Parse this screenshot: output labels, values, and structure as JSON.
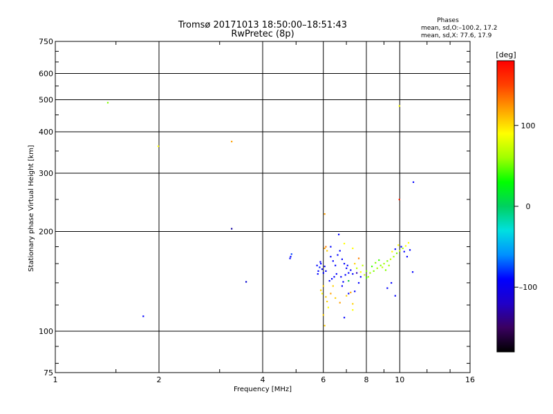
{
  "title": "Tromsø 20171013 18:50:00–18:51:43",
  "subtitle": "RwPretec (8p)",
  "phases": {
    "heading": "Phases",
    "o_line": "mean, sd,O:–100.2, 17.2",
    "x_line": "mean, sd,X:  77.6, 17.9"
  },
  "colorbar": {
    "label": "[deg]",
    "ticks": [
      {
        "value": 100,
        "label": "100"
      },
      {
        "value": 0,
        "label": "0"
      },
      {
        "value": -100,
        "label": "–100"
      }
    ],
    "range": [
      -180,
      180
    ],
    "colors": [
      "#000000",
      "#3a0060",
      "#2000c8",
      "#0000ff",
      "#0090ff",
      "#00e0e0",
      "#00d060",
      "#00ff00",
      "#a0ff00",
      "#ffff00",
      "#ffa000",
      "#ff4000",
      "#ff0000"
    ]
  },
  "chart_data": {
    "type": "scatter",
    "xlabel": "Frequency [MHz]",
    "ylabel": "Stationary phase Virtual Height [km]",
    "xscale": "log",
    "yscale": "log",
    "xlim": [
      1,
      16
    ],
    "ylim": [
      75,
      750
    ],
    "grid": true,
    "xticks": [
      {
        "value": 1,
        "label": "1"
      },
      {
        "value": 2,
        "label": "2"
      },
      {
        "value": 4,
        "label": "4"
      },
      {
        "value": 6,
        "label": "6"
      },
      {
        "value": 8,
        "label": "8"
      },
      {
        "value": 10,
        "label": "10"
      },
      {
        "value": 16,
        "label": "16"
      }
    ],
    "xgrid": [
      2,
      4,
      6,
      8,
      10
    ],
    "yticks": [
      {
        "value": 75,
        "label": "75"
      },
      {
        "value": 100,
        "label": "100"
      },
      {
        "value": 200,
        "label": "200"
      },
      {
        "value": 300,
        "label": "300"
      },
      {
        "value": 400,
        "label": "400"
      },
      {
        "value": 500,
        "label": "500"
      },
      {
        "value": 600,
        "label": "600"
      },
      {
        "value": 750,
        "label": "750"
      }
    ],
    "ygrid": [
      100,
      200,
      300,
      400,
      500,
      600
    ],
    "points": [
      {
        "x": 1.42,
        "y": 490,
        "c": "#80ff00"
      },
      {
        "x": 1.99,
        "y": 362,
        "c": "#ffff00"
      },
      {
        "x": 3.25,
        "y": 374,
        "c": "#ffa000"
      },
      {
        "x": 3.25,
        "y": 204,
        "c": "#1000a0"
      },
      {
        "x": 3.58,
        "y": 141,
        "c": "#0000d0"
      },
      {
        "x": 1.8,
        "y": 111,
        "c": "#0000ff"
      },
      {
        "x": 4.8,
        "y": 166,
        "c": "#0000ff"
      },
      {
        "x": 4.85,
        "y": 171,
        "c": "#0040ff"
      },
      {
        "x": 4.82,
        "y": 168,
        "c": "#0000ff"
      },
      {
        "x": 9.97,
        "y": 479,
        "c": "#ffff00"
      },
      {
        "x": 9.97,
        "y": 250,
        "c": "#ff2000"
      },
      {
        "x": 10.95,
        "y": 282,
        "c": "#0000ff"
      },
      {
        "x": 10.9,
        "y": 151,
        "c": "#0000ff"
      },
      {
        "x": 6.05,
        "y": 226,
        "c": "#ffa000"
      },
      {
        "x": 6.05,
        "y": 104,
        "c": "#ffd000"
      },
      {
        "x": 6.0,
        "y": 112,
        "c": "#ffd000"
      },
      {
        "x": 6.9,
        "y": 110,
        "c": "#0000ff"
      },
      {
        "x": 7.3,
        "y": 116,
        "c": "#ffff00"
      },
      {
        "x": 5.75,
        "y": 158,
        "c": "#0000ff"
      },
      {
        "x": 5.8,
        "y": 152,
        "c": "#0000ff"
      },
      {
        "x": 5.85,
        "y": 156,
        "c": "#0020ff"
      },
      {
        "x": 5.9,
        "y": 160,
        "c": "#0000ff"
      },
      {
        "x": 5.95,
        "y": 154,
        "c": "#0000ff"
      },
      {
        "x": 6.0,
        "y": 150,
        "c": "#0000ff"
      },
      {
        "x": 5.78,
        "y": 149,
        "c": "#0000ff"
      },
      {
        "x": 5.88,
        "y": 162,
        "c": "#0000ff"
      },
      {
        "x": 6.05,
        "y": 157,
        "c": "#0000ff"
      },
      {
        "x": 6.1,
        "y": 152,
        "c": "#0000ff"
      },
      {
        "x": 6.3,
        "y": 168,
        "c": "#0000ff"
      },
      {
        "x": 6.4,
        "y": 163,
        "c": "#0000ff"
      },
      {
        "x": 6.5,
        "y": 158,
        "c": "#0000ff"
      },
      {
        "x": 6.6,
        "y": 170,
        "c": "#0000ff"
      },
      {
        "x": 6.7,
        "y": 175,
        "c": "#0000ff"
      },
      {
        "x": 6.8,
        "y": 165,
        "c": "#0000ff"
      },
      {
        "x": 6.9,
        "y": 160,
        "c": "#0000ff"
      },
      {
        "x": 7.0,
        "y": 155,
        "c": "#0000ff"
      },
      {
        "x": 7.1,
        "y": 150,
        "c": "#0000ff"
      },
      {
        "x": 7.2,
        "y": 153,
        "c": "#0000ff"
      },
      {
        "x": 6.55,
        "y": 149,
        "c": "#0000ff"
      },
      {
        "x": 6.45,
        "y": 146,
        "c": "#0000ff"
      },
      {
        "x": 6.35,
        "y": 144,
        "c": "#0000ff"
      },
      {
        "x": 6.25,
        "y": 142,
        "c": "#0000ff"
      },
      {
        "x": 6.75,
        "y": 146,
        "c": "#0000ff"
      },
      {
        "x": 6.85,
        "y": 141,
        "c": "#0000ff"
      },
      {
        "x": 6.95,
        "y": 148,
        "c": "#0000ff"
      },
      {
        "x": 7.05,
        "y": 158,
        "c": "#0000ff"
      },
      {
        "x": 6.65,
        "y": 196,
        "c": "#0000ff"
      },
      {
        "x": 6.3,
        "y": 180,
        "c": "#0000ff"
      },
      {
        "x": 6.8,
        "y": 137,
        "c": "#0000ff"
      },
      {
        "x": 7.1,
        "y": 130,
        "c": "#0000ff"
      },
      {
        "x": 7.4,
        "y": 132,
        "c": "#0000ff"
      },
      {
        "x": 7.6,
        "y": 140,
        "c": "#0000ff"
      },
      {
        "x": 7.7,
        "y": 146,
        "c": "#0000ff"
      },
      {
        "x": 7.3,
        "y": 149,
        "c": "#0000ff"
      },
      {
        "x": 7.5,
        "y": 150,
        "c": "#3000c0"
      },
      {
        "x": 6.05,
        "y": 178,
        "c": "#ffa000"
      },
      {
        "x": 6.1,
        "y": 180,
        "c": "#ff8000"
      },
      {
        "x": 6.15,
        "y": 175,
        "c": "#ffd000"
      },
      {
        "x": 5.9,
        "y": 133,
        "c": "#ffd000"
      },
      {
        "x": 5.95,
        "y": 130,
        "c": "#ffff00"
      },
      {
        "x": 6.0,
        "y": 137,
        "c": "#ffd000"
      },
      {
        "x": 6.1,
        "y": 127,
        "c": "#ffd000"
      },
      {
        "x": 6.15,
        "y": 123,
        "c": "#ffd000"
      },
      {
        "x": 6.2,
        "y": 118,
        "c": "#ffff00"
      },
      {
        "x": 6.3,
        "y": 130,
        "c": "#ffa000"
      },
      {
        "x": 6.5,
        "y": 126,
        "c": "#ffd000"
      },
      {
        "x": 6.7,
        "y": 122,
        "c": "#ffa000"
      },
      {
        "x": 7.0,
        "y": 128,
        "c": "#ffd000"
      },
      {
        "x": 7.2,
        "y": 131,
        "c": "#ffa000"
      },
      {
        "x": 7.3,
        "y": 121,
        "c": "#ffd000"
      },
      {
        "x": 6.4,
        "y": 137,
        "c": "#ffd000"
      },
      {
        "x": 6.9,
        "y": 184,
        "c": "#ffff00"
      },
      {
        "x": 7.3,
        "y": 178,
        "c": "#ffff00"
      },
      {
        "x": 7.6,
        "y": 166,
        "c": "#ff8000"
      },
      {
        "x": 7.4,
        "y": 160,
        "c": "#ffd000"
      },
      {
        "x": 7.8,
        "y": 158,
        "c": "#c0ff00"
      },
      {
        "x": 8.0,
        "y": 152,
        "c": "#80ff00"
      },
      {
        "x": 8.2,
        "y": 150,
        "c": "#a0ff00"
      },
      {
        "x": 8.4,
        "y": 152,
        "c": "#80ff00"
      },
      {
        "x": 8.6,
        "y": 155,
        "c": "#a0ff00"
      },
      {
        "x": 8.8,
        "y": 158,
        "c": "#80ff00"
      },
      {
        "x": 9.0,
        "y": 160,
        "c": "#a0ff00"
      },
      {
        "x": 9.2,
        "y": 163,
        "c": "#80ff00"
      },
      {
        "x": 9.4,
        "y": 165,
        "c": "#c0ff00"
      },
      {
        "x": 9.6,
        "y": 168,
        "c": "#a0ff00"
      },
      {
        "x": 9.8,
        "y": 172,
        "c": "#80ff00"
      },
      {
        "x": 10.0,
        "y": 175,
        "c": "#c0ff00"
      },
      {
        "x": 10.2,
        "y": 178,
        "c": "#a0ff00"
      },
      {
        "x": 10.4,
        "y": 181,
        "c": "#ffff00"
      },
      {
        "x": 8.3,
        "y": 157,
        "c": "#40ff00"
      },
      {
        "x": 8.5,
        "y": 161,
        "c": "#80ff00"
      },
      {
        "x": 8.7,
        "y": 164,
        "c": "#40ff00"
      },
      {
        "x": 8.9,
        "y": 156,
        "c": "#c0ff00"
      },
      {
        "x": 9.1,
        "y": 153,
        "c": "#80ff00"
      },
      {
        "x": 9.3,
        "y": 158,
        "c": "#a0ff00"
      },
      {
        "x": 7.9,
        "y": 148,
        "c": "#c0ff00"
      },
      {
        "x": 8.1,
        "y": 146,
        "c": "#a0ff00"
      },
      {
        "x": 7.7,
        "y": 151,
        "c": "#ffff00"
      },
      {
        "x": 7.5,
        "y": 155,
        "c": "#c0ff00"
      },
      {
        "x": 9.5,
        "y": 174,
        "c": "#ffff00"
      },
      {
        "x": 9.9,
        "y": 182,
        "c": "#ffff00"
      },
      {
        "x": 10.6,
        "y": 185,
        "c": "#ffff00"
      },
      {
        "x": 8.0,
        "y": 145,
        "c": "#40ff00"
      },
      {
        "x": 7.1,
        "y": 142,
        "c": "#00c040"
      },
      {
        "x": 10.1,
        "y": 180,
        "c": "#0000ff"
      },
      {
        "x": 10.3,
        "y": 174,
        "c": "#0000ff"
      },
      {
        "x": 10.5,
        "y": 168,
        "c": "#0000ff"
      },
      {
        "x": 10.7,
        "y": 176,
        "c": "#0000ff"
      },
      {
        "x": 9.7,
        "y": 177,
        "c": "#0000ff"
      },
      {
        "x": 9.2,
        "y": 135,
        "c": "#0000ff"
      },
      {
        "x": 9.7,
        "y": 128,
        "c": "#0000ff"
      },
      {
        "x": 9.45,
        "y": 140,
        "c": "#0000ff"
      }
    ]
  }
}
